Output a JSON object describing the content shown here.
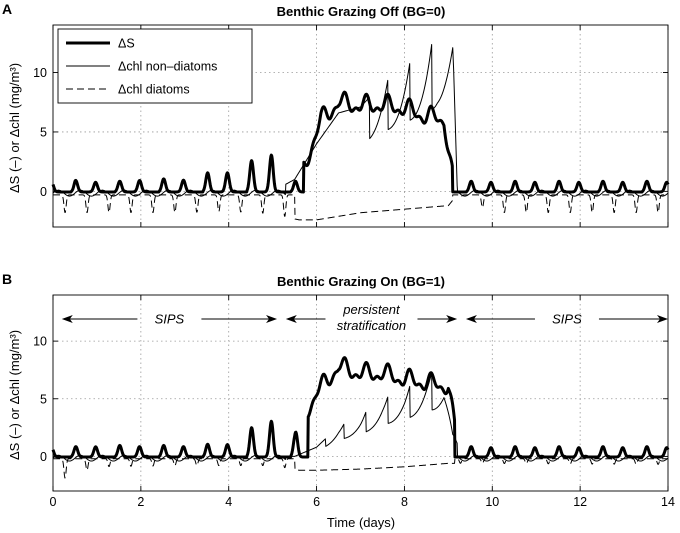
{
  "chart_data": [
    {
      "type": "line",
      "panel_label": "A",
      "title": "Benthic Grazing Off (BG=0)",
      "ylabel": "ΔS (–) or Δchl (mg/m³)",
      "xlabel": "",
      "xlim": [
        0,
        14
      ],
      "ylim": [
        -3,
        14
      ],
      "xticks": [
        0,
        2,
        4,
        6,
        8,
        10,
        12,
        14
      ],
      "yticks": [
        0,
        5,
        10
      ],
      "grid": true,
      "legend": {
        "placement": "top-left",
        "entries": [
          "ΔS",
          "Δchl non–diatoms",
          "Δchl diatoms"
        ]
      },
      "series": [
        {
          "name": "ΔS",
          "style": "thick-solid",
          "description": "tidal oscillations around 0 with peaks near 1 during days 0-4, growing to ~2.5-3.5 by day 5, ramp up from day 5.5 to a plateau of ~6.5-7.7 for days 6-9, sharp drop to ~0 at day 9.1, then small oscillations around 0-1",
          "keypoints": {
            "x": [
              0,
              0.5,
              1,
              2,
              3,
              3.5,
              4,
              4.5,
              5,
              5.3,
              5.6,
              5.9,
              6.1,
              6.5,
              7,
              7.5,
              8,
              8.5,
              8.9,
              9.1,
              9.3,
              10,
              12,
              14
            ],
            "y": [
              0,
              1,
              0.2,
              1.1,
              1.1,
              1.6,
              1.8,
              2.6,
              3.5,
              1,
              0.8,
              4,
              6,
              7.5,
              7.2,
              7.3,
              7,
              6.3,
              6.1,
              1,
              0.5,
              0.8,
              0.8,
              0.8
            ]
          }
        },
        {
          "name": "Δchl non–diatoms",
          "style": "thin-solid",
          "description": "near-zero oscillations through day 4.5, rises from day 5.2 to a plateau ~6-7 with growing sawtooth spikes to 10-13 between days 7.5 and 9.1, drops to ~0 after day 9.1",
          "keypoints": {
            "x": [
              0,
              2,
              4,
              5,
              5.5,
              6,
              6.5,
              7,
              7.5,
              8,
              8.5,
              8.75,
              9.1,
              9.2,
              10,
              14
            ],
            "y": [
              0,
              0,
              0,
              0,
              1,
              4,
              6.6,
              7.1,
              9.1,
              10.5,
              12,
              13,
              12.7,
              0.5,
              0,
              0
            ]
          }
        },
        {
          "name": "Δchl diatoms",
          "style": "dashed",
          "description": "daily dips to about -2 until day 5.4, smooth dashed curve around -2.6 to -1.2 during days 5.5-9.1, then daily dips to about -2",
          "keypoints": {
            "x": [
              0,
              1,
              2,
              3,
              4,
              5,
              5.6,
              6,
              7,
              8,
              9,
              9.2,
              10,
              12,
              14
            ],
            "y": [
              -1.8,
              -1.8,
              -1.8,
              -1.8,
              -1.7,
              -1.9,
              -2.4,
              -2.4,
              -1.8,
              -1.5,
              -1.2,
              -0.3,
              -1.8,
              -1.8,
              -1.8
            ]
          }
        }
      ]
    },
    {
      "type": "line",
      "panel_label": "B",
      "title": "Benthic Grazing On (BG=1)",
      "ylabel": "ΔS (–) or Δchl (mg/m³)",
      "xlabel": "Time (days)",
      "xlim": [
        0,
        14
      ],
      "ylim": [
        -3,
        14
      ],
      "xticks": [
        0,
        2,
        4,
        6,
        8,
        10,
        12,
        14
      ],
      "yticks": [
        0,
        5,
        10
      ],
      "grid": true,
      "annotations": [
        {
          "text": "SIPS",
          "x_range": [
            0.2,
            5.1
          ]
        },
        {
          "text": "persistent",
          "text2": "stratification",
          "x_range": [
            5.3,
            9.2
          ]
        },
        {
          "text": "SIPS",
          "x_range": [
            9.4,
            14
          ]
        }
      ],
      "series": [
        {
          "name": "ΔS",
          "style": "thick-solid",
          "description": "oscillations around 0-1 until day 4, growing peaks ~2.5-3.5 by day 5, rise to a plateau ~6.5-8 for days 6-9, drop at day 9.2 to near 0",
          "keypoints": {
            "x": [
              0,
              1,
              2,
              3,
              4,
              4.5,
              5,
              5.5,
              6,
              6.5,
              7,
              7.5,
              8,
              8.5,
              9,
              9.2,
              9.5,
              12,
              14
            ],
            "y": [
              0.3,
              1,
              1,
              1,
              1.2,
              2.5,
              3.5,
              2,
              5.5,
              7.8,
              7.2,
              7.2,
              6.7,
              6.4,
              6.1,
              1,
              0.7,
              0.8,
              0.8
            ]
          }
        },
        {
          "name": "Δchl non–diatoms",
          "style": "thin-solid",
          "description": "near zero until day 5.5, slow rise with sawtooth oscillations to peaks near 7.5 by day 8.7, drop at day 9.1",
          "keypoints": {
            "x": [
              0,
              2,
              4,
              5.5,
              6,
              6.5,
              7,
              7.5,
              8,
              8.5,
              8.9,
              9.1,
              9.3,
              14
            ],
            "y": [
              0,
              0,
              0,
              0,
              0.8,
              2.6,
              3.5,
              5,
              5.8,
              7.2,
              7.6,
              2,
              0.3,
              0
            ]
          }
        },
        {
          "name": "Δchl diatoms",
          "style": "dashed",
          "description": "small dips near -1 with a larger dip to -2 near day 0.2, smooth curve around -1.3 to -0.6 during days 5.5-9.1",
          "keypoints": {
            "x": [
              0,
              0.2,
              1,
              3,
              5,
              5.6,
              6,
              7,
              8,
              9,
              9.3,
              14
            ],
            "y": [
              -0.8,
              -2,
              -0.9,
              -0.8,
              -0.8,
              -1.2,
              -1.2,
              -1.1,
              -0.9,
              -0.6,
              -0.6,
              -0.7
            ]
          }
        }
      ]
    }
  ]
}
